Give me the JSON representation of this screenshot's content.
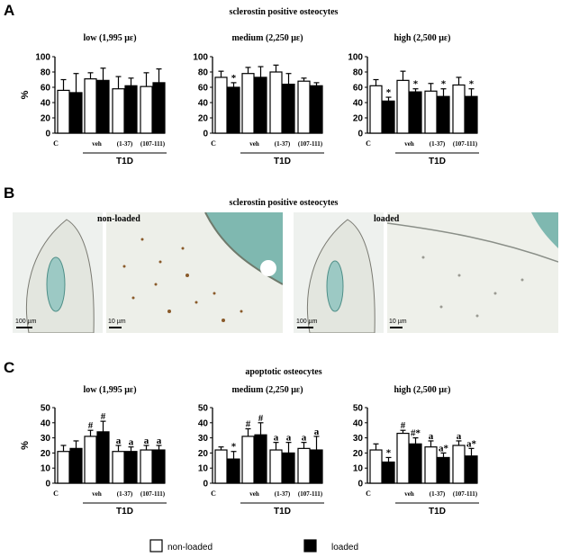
{
  "panels": {
    "a_letter": "A",
    "b_letter": "B",
    "c_letter": "C",
    "a_title": "sclerostin positive osteocytes",
    "b_title": "sclerostin positive osteocytes",
    "c_title": "apoptotic osteocytes"
  },
  "micrographs": {
    "nonloaded_label": "non-loaded",
    "loaded_label": "loaded",
    "scale_100": "100 µm",
    "scale_10": "10 µm"
  },
  "legend": {
    "nonloaded": "non-loaded",
    "loaded": "loaded",
    "nonloaded_color": "#ffffff",
    "loaded_color": "#000000"
  },
  "chart_data": [
    {
      "type": "bar",
      "panel": "A",
      "title": "low (1,995 με)",
      "ylabel": "%",
      "ylim": [
        0,
        100
      ],
      "yticks": [
        0,
        20,
        40,
        60,
        80,
        100
      ],
      "categories": [
        "C",
        "veh",
        "(1-37)",
        "(107-111)"
      ],
      "group_label": "T1D",
      "series": [
        {
          "name": "non-loaded",
          "values": [
            56,
            71,
            58,
            61
          ],
          "errors": [
            14,
            8,
            16,
            18
          ]
        },
        {
          "name": "loaded",
          "values": [
            53,
            69,
            62,
            66
          ],
          "errors": [
            25,
            16,
            10,
            18
          ]
        }
      ],
      "annotations": [
        [
          "",
          ""
        ],
        [
          "",
          ""
        ],
        [
          "",
          ""
        ],
        [
          "",
          ""
        ]
      ]
    },
    {
      "type": "bar",
      "panel": "A",
      "title": "medium  (2,250 με)",
      "ylabel": "",
      "ylim": [
        0,
        100
      ],
      "yticks": [
        0,
        20,
        40,
        60,
        80,
        100
      ],
      "categories": [
        "C",
        "veh",
        "(1-37)",
        "(107-111)"
      ],
      "group_label": "T1D",
      "series": [
        {
          "name": "non-loaded",
          "values": [
            73,
            78,
            80,
            68
          ],
          "errors": [
            8,
            8,
            9,
            4
          ]
        },
        {
          "name": "loaded",
          "values": [
            60,
            73,
            64,
            62
          ],
          "errors": [
            6,
            14,
            14,
            4
          ]
        }
      ],
      "annotations": [
        [
          "",
          "*"
        ],
        [
          "",
          ""
        ],
        [
          "",
          ""
        ],
        [
          "",
          ""
        ]
      ]
    },
    {
      "type": "bar",
      "panel": "A",
      "title": "high (2,500 με)",
      "ylabel": "",
      "ylim": [
        0,
        100
      ],
      "yticks": [
        0,
        20,
        40,
        60,
        80,
        100
      ],
      "categories": [
        "C",
        "veh",
        "(1-37)",
        "(107-111)"
      ],
      "group_label": "T1D",
      "series": [
        {
          "name": "non-loaded",
          "values": [
            62,
            69,
            55,
            63
          ],
          "errors": [
            8,
            12,
            10,
            10
          ]
        },
        {
          "name": "loaded",
          "values": [
            42,
            54,
            48,
            48
          ],
          "errors": [
            5,
            4,
            10,
            10
          ]
        }
      ],
      "annotations": [
        [
          "",
          "*"
        ],
        [
          "",
          "*"
        ],
        [
          "",
          "*"
        ],
        [
          "",
          "*"
        ]
      ]
    },
    {
      "type": "bar",
      "panel": "C",
      "title": "low (1,995 με)",
      "ylabel": "%",
      "ylim": [
        0,
        50
      ],
      "yticks": [
        0,
        10,
        20,
        30,
        40,
        50
      ],
      "categories": [
        "C",
        "veh",
        "(1-37)",
        "(107-111)"
      ],
      "group_label": "T1D",
      "series": [
        {
          "name": "non-loaded",
          "values": [
            21,
            31,
            21,
            22
          ],
          "errors": [
            4,
            4,
            4,
            3
          ]
        },
        {
          "name": "loaded",
          "values": [
            23,
            34,
            21,
            22
          ],
          "errors": [
            5,
            7,
            3,
            3
          ]
        }
      ],
      "annotations": [
        [
          "",
          ""
        ],
        [
          "#",
          "#"
        ],
        [
          "a",
          "a"
        ],
        [
          "a",
          "a"
        ]
      ]
    },
    {
      "type": "bar",
      "panel": "C",
      "title": "medium  (2,250 με)",
      "ylabel": "",
      "ylim": [
        0,
        50
      ],
      "yticks": [
        0,
        10,
        20,
        30,
        40,
        50
      ],
      "categories": [
        "C",
        "veh",
        "(1-37)",
        "(107-111)"
      ],
      "group_label": "T1D",
      "series": [
        {
          "name": "non-loaded",
          "values": [
            22,
            31,
            22,
            23
          ],
          "errors": [
            2,
            5,
            5,
            4
          ]
        },
        {
          "name": "loaded",
          "values": [
            16,
            32,
            20,
            22
          ],
          "errors": [
            5,
            8,
            7,
            9
          ]
        }
      ],
      "annotations": [
        [
          "",
          "*"
        ],
        [
          "#",
          "#"
        ],
        [
          "a",
          "a"
        ],
        [
          "a",
          "a"
        ]
      ]
    },
    {
      "type": "bar",
      "panel": "C",
      "title": "high (2,500 με)",
      "ylabel": "",
      "ylim": [
        0,
        50
      ],
      "yticks": [
        0,
        10,
        20,
        30,
        40,
        50
      ],
      "categories": [
        "C",
        "veh",
        "(1-37)",
        "(107-111)"
      ],
      "group_label": "T1D",
      "series": [
        {
          "name": "non-loaded",
          "values": [
            22,
            33,
            24,
            25
          ],
          "errors": [
            4,
            2,
            4,
            3
          ]
        },
        {
          "name": "loaded",
          "values": [
            14,
            26,
            17,
            18
          ],
          "errors": [
            3,
            4,
            3,
            5
          ]
        }
      ],
      "annotations": [
        [
          "",
          "*"
        ],
        [
          "#",
          "#*"
        ],
        [
          "a",
          "a*"
        ],
        [
          "a",
          "a*"
        ]
      ]
    }
  ]
}
